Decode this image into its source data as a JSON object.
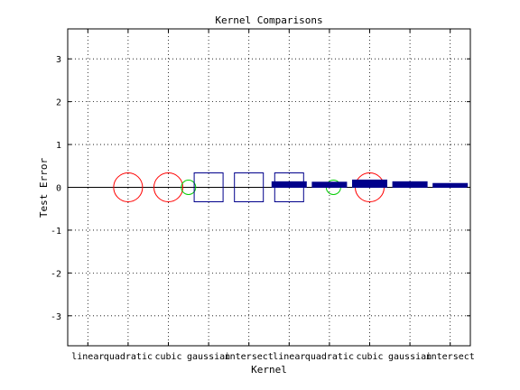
{
  "chart_data": {
    "type": "scatter",
    "title": "Kernel Comparisons",
    "xlabel": "Kernel",
    "ylabel": "Test Error",
    "xlim": [
      0.5,
      10.5
    ],
    "ylim": [
      -3.7,
      3.7
    ],
    "yticks": [
      -3,
      -2,
      -1,
      0,
      1,
      2,
      3
    ],
    "categories": [
      "linear",
      "quadratic",
      "cubic",
      "gaussian",
      "intersect",
      "linear",
      "quadratic",
      "cubic",
      "gaussian",
      "intersect"
    ],
    "grid": true,
    "series": [
      {
        "marker": "circle",
        "color": "#ff0000",
        "x": [
          2,
          3,
          8
        ],
        "y": [
          0,
          0,
          0
        ]
      },
      {
        "marker": "circle-small",
        "color": "#00cc00",
        "x": [
          3.5,
          7.1
        ],
        "y": [
          0,
          0
        ]
      },
      {
        "marker": "square",
        "color": "#00008b",
        "x": [
          4,
          5,
          6
        ],
        "y": [
          0,
          0,
          0
        ]
      },
      {
        "marker": "bar",
        "color": "#00008b",
        "x": [
          6,
          7,
          8,
          9,
          10
        ],
        "y": [
          0.13,
          0.12,
          0.17,
          0.13,
          0.09
        ]
      }
    ]
  }
}
